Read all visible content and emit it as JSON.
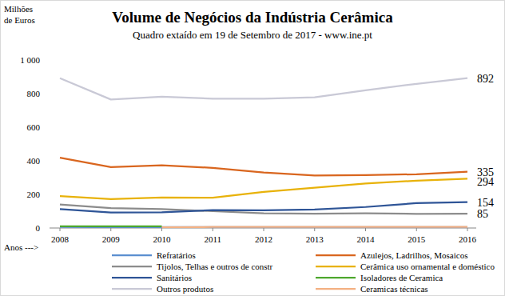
{
  "chart_data": {
    "type": "line",
    "title": "Volume de Negócios da Indústria Cerâmica",
    "subtitle": "Quadro extaído em 19 de Setembro de 2017 - www.ine.pt",
    "y_label": "Milhões de Euros",
    "x_label": "Anos --->",
    "categories": [
      "2008",
      "2009",
      "2010",
      "2011",
      "2012",
      "2013",
      "2014",
      "2015",
      "2016"
    ],
    "ylim": [
      0,
      1000
    ],
    "yticks": [
      0,
      200,
      400,
      600,
      800,
      {
        "value": 1000,
        "label": "1 000"
      }
    ],
    "grid": false,
    "legend": "bottom",
    "series": [
      {
        "name": "Refratários",
        "color": "#5b8fd0",
        "values": [
          6,
          5,
          5,
          5,
          5,
          5,
          5,
          5,
          5
        ]
      },
      {
        "name": "Azulejos, Ladrilhos, Mosaicos",
        "color": "#d9661f",
        "values": [
          418,
          363,
          373,
          358,
          330,
          313,
          315,
          320,
          335
        ],
        "data_labels": true
      },
      {
        "name": "Tijolos, Telhas e outros de constr",
        "color": "#8c8c8c",
        "values": [
          140,
          118,
          113,
          100,
          88,
          85,
          87,
          84,
          85
        ],
        "data_labels": true
      },
      {
        "name": "Cerâmica uso ornamental e doméstico",
        "color": "#e8b20a",
        "values": [
          190,
          172,
          182,
          180,
          215,
          240,
          265,
          282,
          294
        ],
        "data_labels": true
      },
      {
        "name": "Sanitários",
        "color": "#2f5597",
        "values": [
          113,
          92,
          93,
          107,
          105,
          110,
          125,
          148,
          154
        ],
        "data_labels": true
      },
      {
        "name": "Isoladores de Ceramica",
        "color": "#4ea72e",
        "values": [
          10,
          10,
          10,
          null,
          null,
          null,
          null,
          null,
          null
        ]
      },
      {
        "name": "Outros produtos",
        "color": "#c9c9d6",
        "values": [
          892,
          765,
          782,
          770,
          770,
          778,
          820,
          858,
          892
        ],
        "data_labels": true
      },
      {
        "name": "Ceramicas técnicas",
        "color": "#f4b183",
        "values": [
          null,
          null,
          4,
          6,
          7,
          7,
          7,
          7,
          7
        ]
      }
    ]
  }
}
